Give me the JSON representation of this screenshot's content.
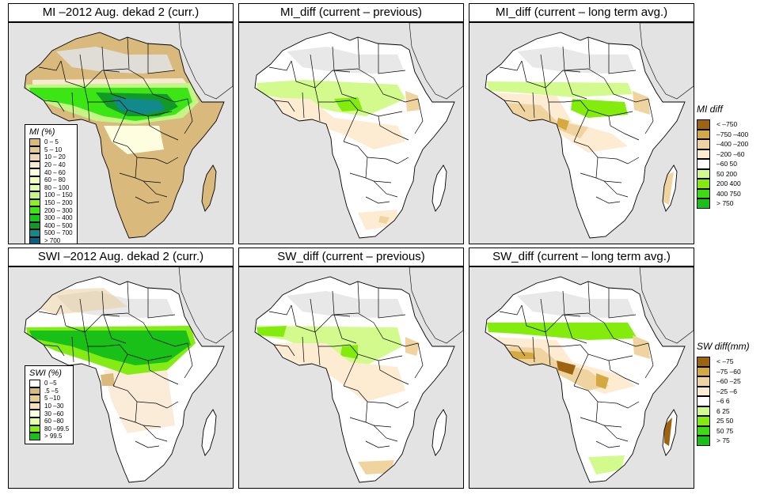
{
  "panels": [
    {
      "id": "mi-curr",
      "title": "MI –2012 Aug. dekad 2 (curr.)",
      "scheme": "mi_abs"
    },
    {
      "id": "mi-diff-prev",
      "title": "MI_diff (current – previous)",
      "scheme": "mi_diff_prev"
    },
    {
      "id": "mi-diff-lta",
      "title": "MI_diff (current – long term avg.)",
      "scheme": "mi_diff_lta"
    },
    {
      "id": "swi-curr",
      "title": "SWI –2012 Aug. dekad 2 (curr.)",
      "scheme": "swi_abs"
    },
    {
      "id": "sw-diff-prev",
      "title": "SW_diff (current – previous)",
      "scheme": "sw_diff_prev"
    },
    {
      "id": "sw-diff-lta",
      "title": "SW_diff (current – long term avg.)",
      "scheme": "sw_diff_lta"
    }
  ],
  "legends": {
    "mi": {
      "title": "MI (%)",
      "items": [
        {
          "label": "0 – 5",
          "color": "#d9b97c"
        },
        {
          "label": "5 – 10",
          "color": "#e3c996"
        },
        {
          "label": "10 – 20",
          "color": "#eed8b4"
        },
        {
          "label": "20 – 40",
          "color": "#f8ead2"
        },
        {
          "label": "40 – 60",
          "color": "#fdfde0"
        },
        {
          "label": "60 – 80",
          "color": "#f3ffc0"
        },
        {
          "label": "80 – 100",
          "color": "#e0ffb0"
        },
        {
          "label": "100 – 150",
          "color": "#c4f586"
        },
        {
          "label": "150 – 200",
          "color": "#8cf01e"
        },
        {
          "label": "200 – 300",
          "color": "#3ce614"
        },
        {
          "label": "300 – 400",
          "color": "#18c818"
        },
        {
          "label": "400 – 500",
          "color": "#129a28"
        },
        {
          "label": "500 – 700",
          "color": "#128a8c"
        },
        {
          "label": "> 700",
          "color": "#0c5f82"
        }
      ]
    },
    "swi": {
      "title": "SWI (%)",
      "items": [
        {
          "label": "0 –5",
          "color": "#ffffff"
        },
        {
          "label": ".5 –5",
          "color": "#d9b97c"
        },
        {
          "label": "5 –10",
          "color": "#e8cc98"
        },
        {
          "label": "10 –30",
          "color": "#f6e0c0"
        },
        {
          "label": "30 –60",
          "color": "#fdfde0"
        },
        {
          "label": "60 –80",
          "color": "#e4ffa8"
        },
        {
          "label": "80 –99.5",
          "color": "#84ec14"
        },
        {
          "label": "> 99.5",
          "color": "#18c018"
        }
      ]
    },
    "mi_diff": {
      "title": "MI diff",
      "items": [
        {
          "label": "< –750",
          "color": "#9c6410"
        },
        {
          "label": "–750 –400",
          "color": "#d4aa40"
        },
        {
          "label": "–400 –200",
          "color": "#f0d4a0"
        },
        {
          "label": "–200  –60",
          "color": "#fdebd2"
        },
        {
          "label": "–60  50",
          "color": "#ffffff"
        },
        {
          "label": "50  200",
          "color": "#d2fa8c"
        },
        {
          "label": "200  400",
          "color": "#84ec0c"
        },
        {
          "label": "400  750",
          "color": "#3cdc10"
        },
        {
          "label": "> 750",
          "color": "#18c018"
        }
      ]
    },
    "sw_diff": {
      "title": "SW diff(mm)",
      "items": [
        {
          "label": "< –75",
          "color": "#9c6410"
        },
        {
          "label": "–75 –60",
          "color": "#d4aa40"
        },
        {
          "label": "–60 –25",
          "color": "#f0d4a0"
        },
        {
          "label": "–25  –6",
          "color": "#fdebd2"
        },
        {
          "label": "–6  6",
          "color": "#ffffff"
        },
        {
          "label": "6  25",
          "color": "#d2fa8c"
        },
        {
          "label": "25  50",
          "color": "#84ec0c"
        },
        {
          "label": "50  75",
          "color": "#3cdc10"
        },
        {
          "label": "> 75",
          "color": "#18c018"
        }
      ]
    }
  },
  "colors": {
    "ocean": "#e3e3e3",
    "no_data": "#e0e0e0",
    "border": "#000000"
  }
}
